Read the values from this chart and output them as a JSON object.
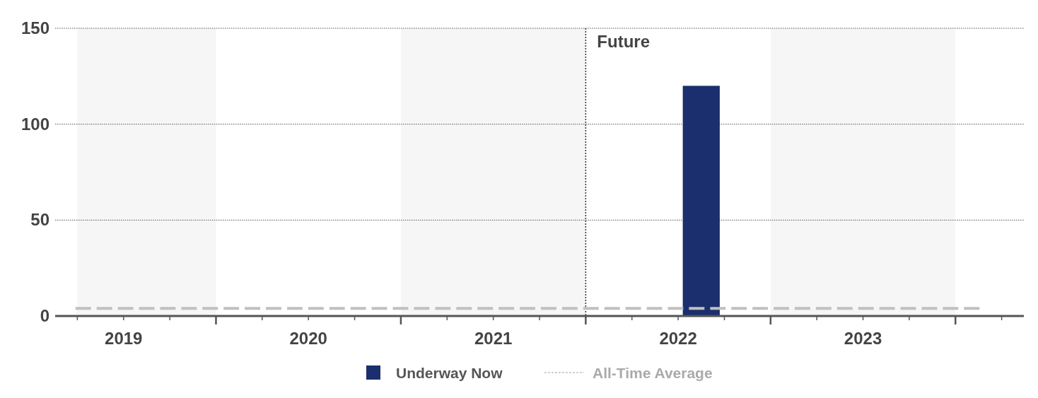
{
  "chart_data": {
    "type": "bar",
    "series": [
      {
        "name": "Underway Now",
        "color": "#1b2f6e",
        "x": [
          2022.625
        ],
        "values": [
          120
        ]
      },
      {
        "name": "All-Time Average",
        "type": "line",
        "color": "#c0c0c0",
        "line_style": "dashed",
        "x": [
          2019.24,
          2024.13
        ],
        "values": [
          4,
          4
        ]
      }
    ],
    "xlim": [
      2019.13,
      2024.37
    ],
    "xticks": [
      {
        "value": 2019.25,
        "label": null
      },
      {
        "value": 2019.5,
        "label": "2019"
      },
      {
        "value": 2019.75,
        "label": null
      },
      {
        "value": 2020,
        "label": null
      },
      {
        "value": 2020.25,
        "label": null
      },
      {
        "value": 2020.5,
        "label": "2020"
      },
      {
        "value": 2020.75,
        "label": null
      },
      {
        "value": 2021,
        "label": null
      },
      {
        "value": 2021.25,
        "label": null
      },
      {
        "value": 2021.5,
        "label": "2021"
      },
      {
        "value": 2021.75,
        "label": null
      },
      {
        "value": 2022,
        "label": null
      },
      {
        "value": 2022.25,
        "label": null
      },
      {
        "value": 2022.5,
        "label": "2022"
      },
      {
        "value": 2022.75,
        "label": null
      },
      {
        "value": 2023,
        "label": null
      },
      {
        "value": 2023.25,
        "label": null
      },
      {
        "value": 2023.5,
        "label": "2023"
      },
      {
        "value": 2023.75,
        "label": null
      },
      {
        "value": 2024,
        "label": null
      },
      {
        "value": 2024.25,
        "label": null
      }
    ],
    "ylim": [
      0,
      150
    ],
    "yticks": [
      0,
      50,
      100,
      150
    ],
    "grid": "y",
    "ref_lines": [
      {
        "axis": "x",
        "value": 2022,
        "label": "Future",
        "color": "#333333",
        "line_style": "dotted"
      }
    ],
    "bands": [
      {
        "axis": "x",
        "from": 2019.25,
        "to": 2020,
        "color": "#f6f6f6"
      },
      {
        "axis": "x",
        "from": 2021,
        "to": 2022,
        "color": "#f6f6f6"
      },
      {
        "axis": "x",
        "from": 2023,
        "to": 2024,
        "color": "#f6f6f6"
      }
    ],
    "legend": "bottom"
  }
}
